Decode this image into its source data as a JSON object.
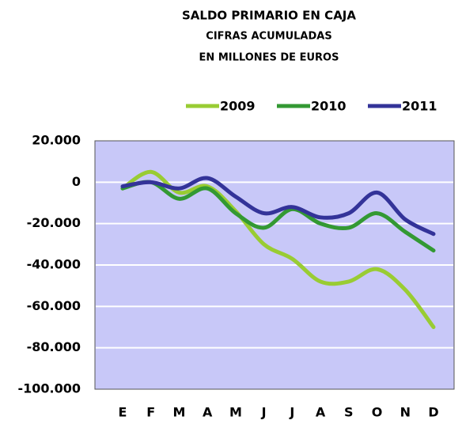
{
  "chart_data": {
    "type": "line",
    "title": "SALDO PRIMARIO EN CAJA",
    "subtitle": [
      "CIFRAS ACUMULADAS",
      "EN MILLONES DE EUROS"
    ],
    "categories": [
      "E",
      "F",
      "M",
      "A",
      "M",
      "J",
      "J",
      "A",
      "S",
      "O",
      "N",
      "D"
    ],
    "series": [
      {
        "name": "2009",
        "color": "#99cc33",
        "values": [
          -3000,
          5000,
          -5000,
          -2000,
          -14000,
          -30000,
          -37000,
          -48000,
          -48000,
          -42000,
          -52000,
          -70000
        ]
      },
      {
        "name": "2010",
        "color": "#339933",
        "values": [
          -3000,
          0,
          -8000,
          -3000,
          -15000,
          -22000,
          -13000,
          -20000,
          -22000,
          -15000,
          -24000,
          -33000
        ]
      },
      {
        "name": "2011",
        "color": "#333399",
        "values": [
          -2000,
          0,
          -3000,
          2000,
          -7000,
          -15000,
          -12000,
          -17000,
          -15000,
          -5000,
          -18000,
          -25000
        ]
      }
    ],
    "ylim": [
      -100000,
      20000
    ],
    "yticks": [
      {
        "value": -100000,
        "label": "-100.000"
      },
      {
        "value": -80000,
        "label": "-80.000"
      },
      {
        "value": -60000,
        "label": "-60.000"
      },
      {
        "value": -40000,
        "label": "-40.000"
      },
      {
        "value": -20000,
        "label": "-20.000"
      },
      0,
      {
        "value": 20000,
        "label": "20.000"
      }
    ],
    "grid": true,
    "legend": "top-right"
  }
}
